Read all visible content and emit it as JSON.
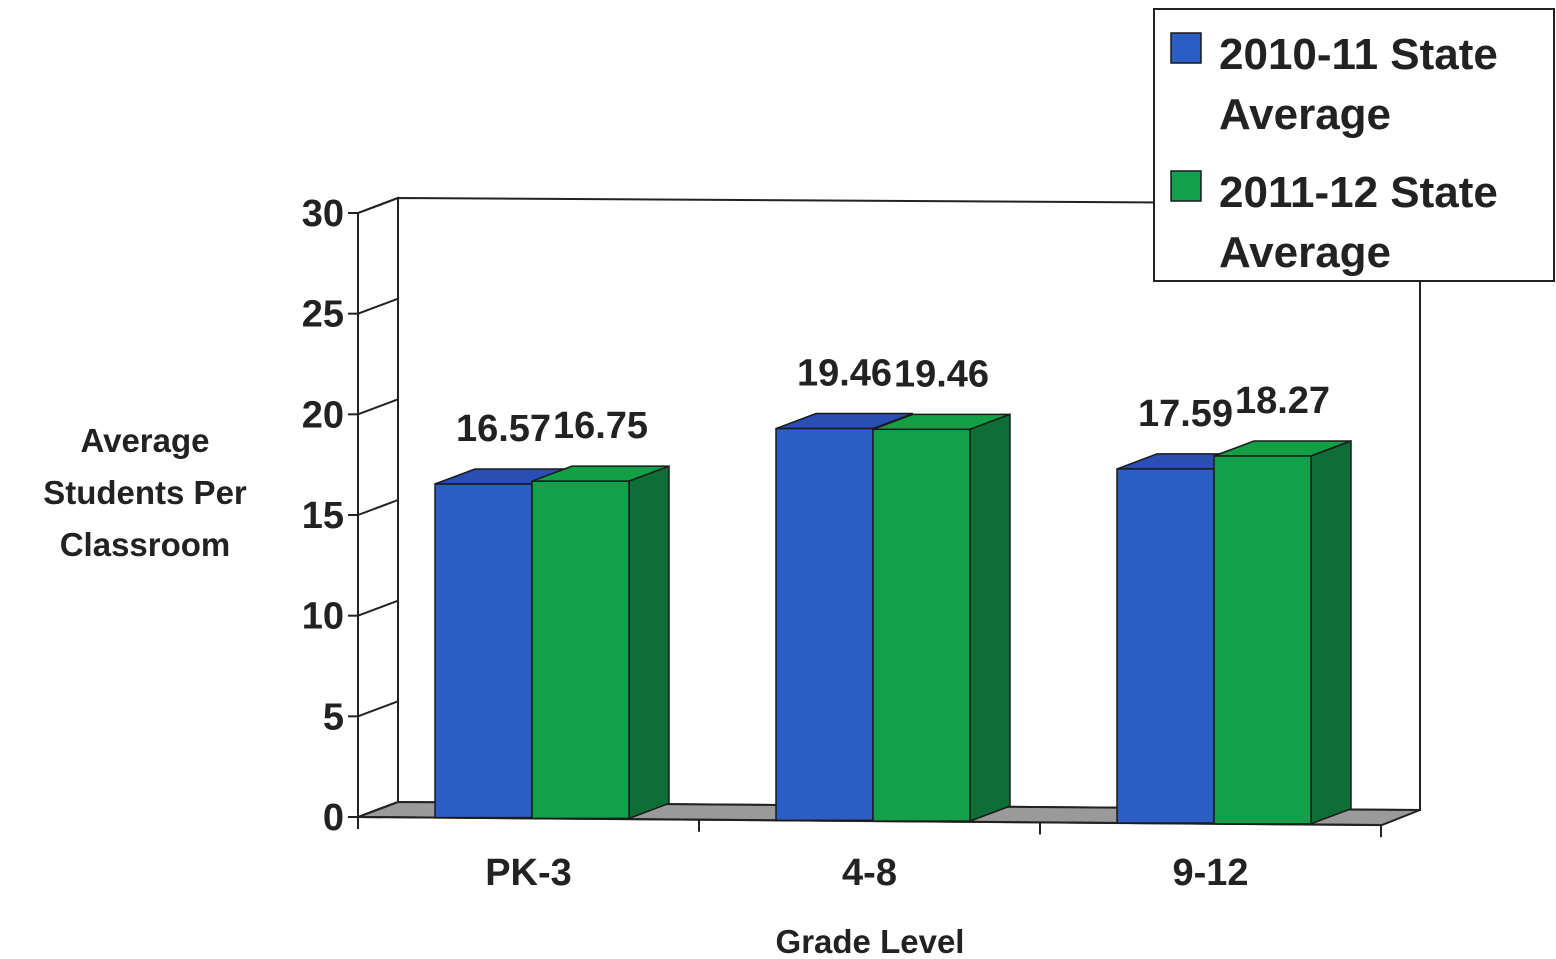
{
  "chart_data": {
    "type": "bar",
    "categories": [
      "PK-3",
      "4-8",
      "9-12"
    ],
    "series": [
      {
        "name": "2010-11 State Average",
        "values": [
          16.57,
          19.46,
          17.59
        ]
      },
      {
        "name": "2011-12 State Average",
        "values": [
          16.75,
          19.46,
          18.27
        ]
      }
    ],
    "value_labels": [
      [
        "16.57",
        "19.46",
        "17.59"
      ],
      [
        "16.75",
        "19.46",
        "18.27"
      ]
    ],
    "legend_lines": [
      [
        "2010-11 State",
        "Average"
      ],
      [
        "2011-12 State",
        "Average"
      ]
    ],
    "xlabel": "Grade Level",
    "ylabel_lines": [
      "Average",
      "Students Per",
      "Classroom"
    ],
    "ylim": [
      0,
      30
    ],
    "yticks": [
      0,
      5,
      10,
      15,
      20,
      25,
      30
    ],
    "legend_position": "top-right",
    "style": "3d-clustered-column",
    "colors": {
      "series": [
        "#2b5dc4",
        "#14a04a"
      ],
      "series_side": [
        "#1d3f8f",
        "#0d6e36"
      ],
      "series_top": [
        "#2a4fb4",
        "#12a046"
      ],
      "floor": "#9a9a9a",
      "frame": "#222222"
    }
  }
}
